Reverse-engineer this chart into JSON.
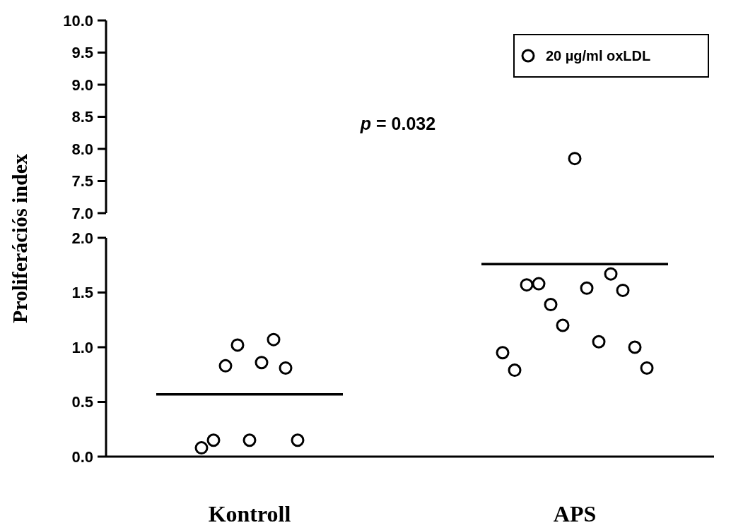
{
  "chart_data": [
    {
      "type": "scatter",
      "categories": [
        "Kontroll",
        "APS"
      ],
      "ylim": [
        7,
        10
      ],
      "yticks": [
        {
          "value": 7,
          "label": "7.0"
        },
        {
          "value": 7.5,
          "label": "7.5"
        },
        {
          "value": 8,
          "label": "8.0"
        },
        {
          "value": 8.5,
          "label": "8.5"
        },
        {
          "value": 9,
          "label": "9.0"
        },
        {
          "value": 9.5,
          "label": "9.5"
        },
        {
          "value": 10,
          "label": "10.0"
        }
      ],
      "tick_labels": "y",
      "marker": "circle",
      "legend": "top right",
      "annotations": [
        "p = 0.032"
      ],
      "series": [
        {
          "name": "20 µg/ml oxLDL",
          "color": "#000000",
          "x": [
            "APS",
            "APS",
            "APS",
            "APS",
            "APS",
            "APS",
            "APS",
            "APS",
            "APS",
            "APS",
            "APS",
            "APS",
            "APS"
          ],
          "values": [
            null,
            null,
            null,
            null,
            null,
            null,
            7.85,
            null,
            null,
            null,
            null,
            null,
            null
          ]
        }
      ]
    },
    {
      "type": "scatter",
      "ylabel": "Proliferációs index",
      "categories": [
        "Kontroll",
        "APS"
      ],
      "ylim": [
        0,
        2
      ],
      "yticks": [
        {
          "value": 0,
          "label": "0.0"
        },
        {
          "value": 0.5,
          "label": "0.5"
        },
        {
          "value": 1,
          "label": "1.0"
        },
        {
          "value": 1.5,
          "label": "1.5"
        },
        {
          "value": 2,
          "label": "2.0"
        }
      ],
      "marker": "circle",
      "ref_lines": [
        {
          "axis": "y",
          "value": 0.57,
          "color": "#000000"
        },
        {
          "axis": "y",
          "value": 1.76,
          "color": "#000000"
        }
      ],
      "series": [
        {
          "color": "#000000",
          "x": [
            "Kontroll",
            "Kontroll",
            "Kontroll",
            "Kontroll",
            "Kontroll",
            "Kontroll",
            "Kontroll",
            "Kontroll",
            "Kontroll",
            "APS",
            "APS",
            "APS",
            "APS",
            "APS",
            "APS",
            "APS",
            "APS",
            "APS",
            "APS",
            "APS",
            "APS",
            "APS"
          ],
          "values": [
            0.08,
            0.15,
            0.83,
            1.02,
            0.15,
            0.86,
            1.07,
            0.81,
            0.15,
            0.95,
            0.79,
            1.57,
            1.58,
            1.39,
            1.2,
            null,
            1.54,
            1.05,
            1.67,
            1.52,
            1.0,
            0.81
          ]
        }
      ]
    }
  ]
}
